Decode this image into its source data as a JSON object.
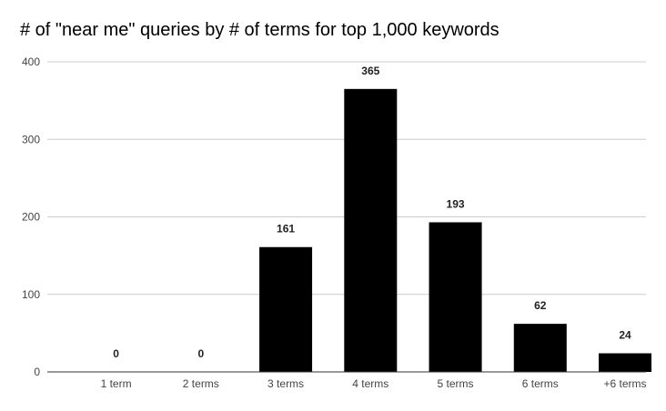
{
  "chart_data": {
    "type": "bar",
    "title": "# of \"near me\" queries by # of terms for top 1,000 keywords",
    "xlabel": "",
    "ylabel": "",
    "categories": [
      "1 term",
      "2 terms",
      "3 terms",
      "4 terms",
      "5 terms",
      "6 terms",
      "+6 terms"
    ],
    "values": [
      0,
      0,
      161,
      365,
      193,
      62,
      24
    ],
    "data_labels": [
      "0",
      "0",
      "161",
      "365",
      "193",
      "62",
      "24"
    ],
    "ylim": [
      0,
      400
    ],
    "yticks": [
      0,
      100,
      200,
      300,
      400
    ],
    "ytick_labels": [
      "0",
      "100",
      "200",
      "300",
      "400"
    ],
    "grid": true,
    "legend": "none",
    "colors": {
      "bar": "#000000",
      "grid": "#cccccc",
      "axis": "#333333"
    }
  }
}
